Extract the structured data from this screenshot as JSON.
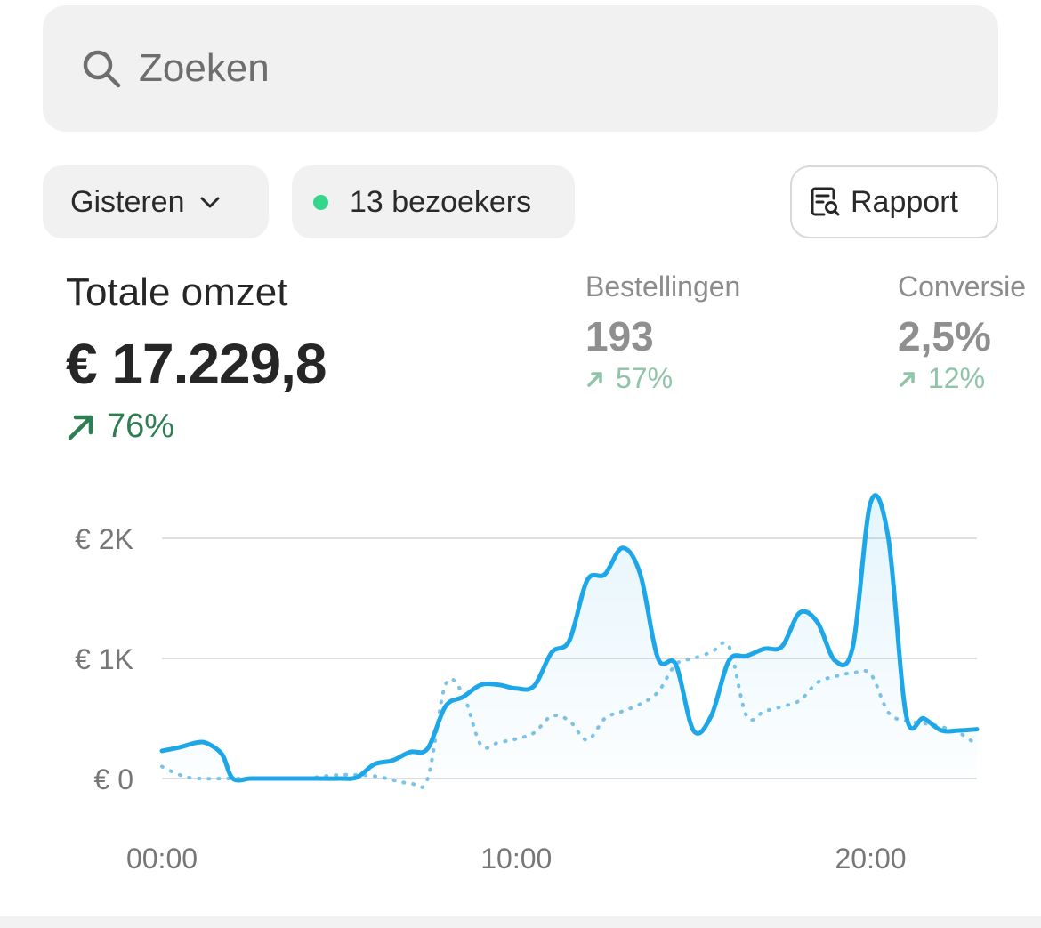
{
  "search": {
    "placeholder": "Zoeken",
    "icon": "search-icon"
  },
  "filters": {
    "date_label": "Gisteren",
    "visitors_label": "13 bezoekers",
    "visitors_dot_color": "#33d68a",
    "report_label": "Rapport"
  },
  "kpis": {
    "revenue": {
      "label": "Totale omzet",
      "value": "€ 17.229,8",
      "delta": "76%"
    },
    "orders": {
      "label": "Bestellingen",
      "value": "193",
      "delta": "57%"
    },
    "conversion": {
      "label": "Conversie",
      "value": "2,5%",
      "delta": "12%"
    }
  },
  "colors": {
    "accent": "#1ea7e8",
    "compare": "#7cc3e6",
    "positive": "#2e7d53",
    "positive_muted": "#8fc4a6"
  },
  "chart_data": {
    "type": "area",
    "y_ticks": [
      {
        "value": 0,
        "label": "€ 0"
      },
      {
        "value": 1000,
        "label": "€ 1K"
      },
      {
        "value": 2000,
        "label": "€ 2K"
      }
    ],
    "x_ticks": [
      {
        "value": 0,
        "label": "00:00"
      },
      {
        "value": 10,
        "label": "10:00"
      },
      {
        "value": 20,
        "label": "20:00"
      }
    ],
    "xlim": [
      0,
      23
    ],
    "ylim": [
      0,
      2000
    ],
    "grid": true,
    "series": [
      {
        "style": "solid-area",
        "x": [
          0,
          0.5,
          1,
          1.3,
          1.7,
          2,
          2.5,
          3,
          4,
          5,
          5.5,
          6,
          6.5,
          7,
          7.5,
          8,
          8.5,
          9,
          9.5,
          10,
          10.5,
          11,
          11.5,
          12,
          12.5,
          13,
          13.5,
          14,
          14.5,
          15,
          15.5,
          16,
          16.5,
          17,
          17.5,
          18,
          18.5,
          19,
          19.5,
          20,
          20.5,
          21,
          21.5,
          22,
          22.5,
          23
        ],
        "y": [
          230,
          260,
          300,
          290,
          200,
          0,
          0,
          0,
          0,
          0,
          10,
          120,
          150,
          220,
          250,
          600,
          680,
          780,
          780,
          750,
          770,
          1050,
          1150,
          1650,
          1700,
          1920,
          1700,
          1000,
          950,
          400,
          520,
          980,
          1020,
          1080,
          1100,
          1380,
          1300,
          980,
          1100,
          2300,
          2000,
          530,
          500,
          400,
          400,
          410
        ]
      },
      {
        "style": "dotted",
        "x": [
          0,
          0.5,
          1,
          2,
          3,
          4,
          5,
          6,
          7,
          7.5,
          8,
          8.5,
          9,
          9.5,
          10,
          10.5,
          11,
          11.5,
          12,
          12.5,
          13,
          13.5,
          14,
          14.5,
          15,
          15.5,
          16,
          16.5,
          17,
          17.5,
          18,
          18.5,
          19,
          19.5,
          20,
          20.5,
          21,
          21.5,
          22,
          22.5,
          23
        ],
        "y": [
          100,
          30,
          0,
          0,
          0,
          0,
          30,
          20,
          -40,
          0,
          780,
          700,
          280,
          300,
          330,
          380,
          520,
          480,
          320,
          500,
          560,
          620,
          720,
          950,
          1000,
          1050,
          1100,
          520,
          560,
          600,
          650,
          800,
          850,
          880,
          870,
          550,
          480,
          460,
          430,
          380,
          280
        ]
      }
    ]
  }
}
